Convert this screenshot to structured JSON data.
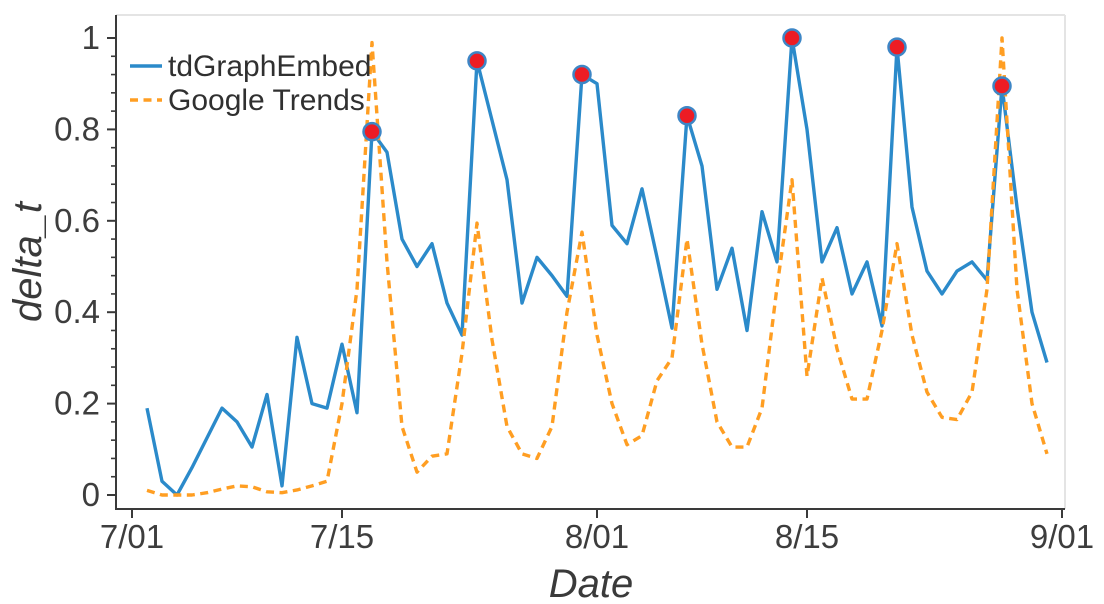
{
  "figure": {
    "title": "",
    "colors": {
      "tdgraphembed_blue": "#2b8aca",
      "google_trends_orange": "#ff9e22",
      "peak_marker_red": "#ed1c24",
      "peak_marker_edge": "#3d86c6",
      "axis_dark": "#3a3a3a",
      "axis_light": "#e4e4e4",
      "text": "#3d3d3d"
    },
    "legend": [
      {
        "label": "tdGraphEmbed",
        "color": "#2b8aca",
        "style": "solid"
      },
      {
        "label": "Google Trends",
        "color": "#ff9e22",
        "style": "dashed"
      }
    ]
  },
  "chart_data": {
    "type": "line",
    "title": "",
    "xlabel": "Date",
    "ylabel": "delta_t",
    "grid": false,
    "legend_position": "upper-left",
    "xlim_days_from_7_01": [
      -1.07,
      62.2
    ],
    "ylim": [
      -0.03,
      1.05
    ],
    "x_tick_labels": [
      "7/01",
      "7/15",
      "8/01",
      "8/15",
      "9/01"
    ],
    "x_tick_days": [
      0,
      14,
      31,
      45,
      62
    ],
    "y_ticks": [
      0,
      0.2,
      0.4,
      0.6,
      0.8,
      1
    ],
    "y_tick_labels": [
      "0",
      "0.2",
      "0.4",
      "0.6",
      "0.8",
      "1"
    ],
    "y_minor_tick_step": 0.04,
    "x_dates": [
      "7/02",
      "7/03",
      "7/04",
      "7/05",
      "7/06",
      "7/07",
      "7/08",
      "7/09",
      "7/10",
      "7/11",
      "7/12",
      "7/13",
      "7/14",
      "7/15",
      "7/16",
      "7/17",
      "7/18",
      "7/19",
      "7/20",
      "7/21",
      "7/22",
      "7/23",
      "7/24",
      "7/25",
      "7/26",
      "7/27",
      "7/28",
      "7/29",
      "7/30",
      "7/31",
      "8/01",
      "8/02",
      "8/03",
      "8/04",
      "8/05",
      "8/06",
      "8/07",
      "8/08",
      "8/09",
      "8/10",
      "8/11",
      "8/12",
      "8/13",
      "8/14",
      "8/15",
      "8/16",
      "8/17",
      "8/18",
      "8/19",
      "8/20",
      "8/21",
      "8/22",
      "8/23",
      "8/24",
      "8/25",
      "8/26",
      "8/27",
      "8/28",
      "8/29",
      "8/30",
      "8/31"
    ],
    "series": [
      {
        "name": "tdGraphEmbed",
        "color": "#2b8aca",
        "style": "solid",
        "values": [
          0.19,
          0.03,
          0.0,
          0.06,
          0.125,
          0.19,
          0.16,
          0.105,
          0.22,
          0.02,
          0.345,
          0.2,
          0.19,
          0.33,
          0.18,
          0.795,
          0.75,
          0.56,
          0.5,
          0.55,
          0.42,
          0.35,
          0.95,
          0.82,
          0.69,
          0.42,
          0.52,
          0.48,
          0.435,
          0.92,
          0.9,
          0.59,
          0.55,
          0.67,
          0.52,
          0.365,
          0.83,
          0.72,
          0.45,
          0.54,
          0.36,
          0.62,
          0.51,
          1.0,
          0.8,
          0.51,
          0.585,
          0.44,
          0.51,
          0.37,
          0.98,
          0.63,
          0.49,
          0.44,
          0.49,
          0.51,
          0.47,
          0.895,
          0.63,
          0.4,
          0.29
        ]
      },
      {
        "name": "Google Trends",
        "color": "#ff9e22",
        "style": "dashed",
        "values": [
          0.01,
          0.0,
          0.0,
          0.0,
          0.005,
          0.013,
          0.02,
          0.018,
          0.007,
          0.005,
          0.011,
          0.02,
          0.03,
          0.2,
          0.45,
          0.99,
          0.51,
          0.15,
          0.05,
          0.085,
          0.09,
          0.31,
          0.595,
          0.34,
          0.15,
          0.09,
          0.08,
          0.15,
          0.4,
          0.575,
          0.35,
          0.2,
          0.11,
          0.13,
          0.25,
          0.3,
          0.56,
          0.33,
          0.16,
          0.105,
          0.105,
          0.19,
          0.455,
          0.69,
          0.26,
          0.475,
          0.32,
          0.21,
          0.21,
          0.36,
          0.55,
          0.35,
          0.225,
          0.17,
          0.165,
          0.225,
          0.45,
          1.0,
          0.45,
          0.2,
          0.09
        ]
      }
    ],
    "peak_markers": {
      "series": "tdGraphEmbed",
      "color": "#ed1c24",
      "edge_color": "#3d86c6",
      "points": [
        {
          "date": "7/17",
          "value": 0.795
        },
        {
          "date": "7/24",
          "value": 0.95
        },
        {
          "date": "7/31",
          "value": 0.92
        },
        {
          "date": "8/07",
          "value": 0.83
        },
        {
          "date": "8/14",
          "value": 1.0
        },
        {
          "date": "8/21",
          "value": 0.98
        },
        {
          "date": "8/28",
          "value": 0.895
        }
      ]
    }
  }
}
